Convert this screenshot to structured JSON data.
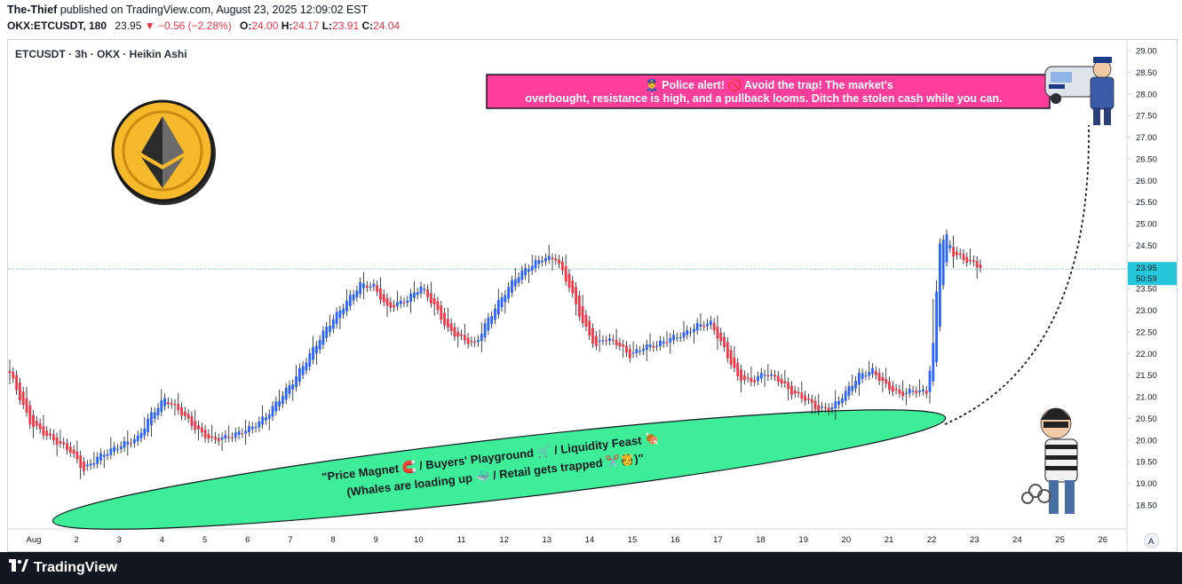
{
  "header": {
    "author": "The-Thief",
    "published": "published on TradingView.com, August 23, 2025 12:09:02 EST",
    "symbol": "OKX:ETCUSDT, 180",
    "last": "23.95",
    "change": "▼ −0.56 (−2.28%)",
    "o_label": "O:",
    "o_value": "24.00",
    "h_label": "H:",
    "h_value": "24.17",
    "l_label": "L:",
    "l_value": "23.91",
    "c_label": "C:",
    "c_value": "24.04"
  },
  "chart_title": "ETCUSDT · 3h · OKX · Heikin Ashi",
  "banner": {
    "line1": "👮‍♂️ Police alert! 🚫 Avoid the trap! The market's",
    "line2": "overbought, resistance is high, and a pullback looms. Ditch the stolen cash while you can."
  },
  "zone": {
    "line1": "\"Price Magnet 🧲 / Buyers' Playground 🛒 / Liquidity Feast 🍖",
    "line2": "(Whales are loading up 🐳 / Retail gets trapped ✂️🫅)\""
  },
  "price_label": {
    "price": "23.95",
    "countdown": "50:59"
  },
  "footer": {
    "brand": "TradingView"
  },
  "colors": {
    "up": "#2962ff",
    "down": "#f23645",
    "zone": "#3ded97",
    "banner": "#ff3d9a",
    "price_line": "#26c6da"
  },
  "chart_data": {
    "type": "candlestick",
    "style": "Heikin Ashi",
    "interval": "3h",
    "ylim": [
      18.5,
      29.0
    ],
    "y_ticks": [
      "29.00",
      "28.50",
      "28.00",
      "27.50",
      "27.00",
      "26.50",
      "26.00",
      "25.50",
      "25.00",
      "24.50",
      "24.00",
      "23.50",
      "23.00",
      "22.50",
      "22.00",
      "21.50",
      "21.00",
      "20.50",
      "20.00",
      "19.50",
      "19.00",
      "18.50"
    ],
    "x_ticks": [
      "Aug",
      "2",
      "3",
      "4",
      "5",
      "6",
      "7",
      "8",
      "9",
      "10",
      "11",
      "12",
      "13",
      "14",
      "15",
      "16",
      "17",
      "18",
      "19",
      "20",
      "21",
      "22",
      "23",
      "24",
      "25",
      "26"
    ],
    "grid": false,
    "current_price": 23.95,
    "anchors": [
      [
        0,
        21.55
      ],
      [
        6,
        20.4
      ],
      [
        12,
        20.05
      ],
      [
        18,
        19.75
      ],
      [
        22,
        19.3
      ],
      [
        26,
        19.6
      ],
      [
        32,
        19.85
      ],
      [
        38,
        20.05
      ],
      [
        42,
        20.6
      ],
      [
        46,
        20.95
      ],
      [
        50,
        20.7
      ],
      [
        56,
        20.2
      ],
      [
        60,
        20.0
      ],
      [
        66,
        20.1
      ],
      [
        72,
        20.3
      ],
      [
        76,
        20.55
      ],
      [
        80,
        20.95
      ],
      [
        84,
        21.35
      ],
      [
        90,
        22.1
      ],
      [
        94,
        22.6
      ],
      [
        98,
        23.0
      ],
      [
        102,
        23.4
      ],
      [
        104,
        23.6
      ],
      [
        108,
        23.55
      ],
      [
        112,
        23.05
      ],
      [
        118,
        23.25
      ],
      [
        122,
        23.55
      ],
      [
        126,
        23.1
      ],
      [
        130,
        22.55
      ],
      [
        134,
        22.35
      ],
      [
        138,
        22.2
      ],
      [
        142,
        22.8
      ],
      [
        146,
        23.3
      ],
      [
        150,
        23.75
      ],
      [
        154,
        24.0
      ],
      [
        158,
        24.2
      ],
      [
        162,
        24.2
      ],
      [
        166,
        23.55
      ],
      [
        170,
        22.7
      ],
      [
        174,
        22.15
      ],
      [
        176,
        22.35
      ],
      [
        180,
        22.25
      ],
      [
        184,
        21.95
      ],
      [
        188,
        22.15
      ],
      [
        192,
        22.2
      ],
      [
        196,
        22.35
      ],
      [
        200,
        22.45
      ],
      [
        204,
        22.65
      ],
      [
        208,
        22.7
      ],
      [
        212,
        22.1
      ],
      [
        216,
        21.45
      ],
      [
        220,
        21.35
      ],
      [
        224,
        21.55
      ],
      [
        228,
        21.4
      ],
      [
        232,
        21.1
      ],
      [
        236,
        20.95
      ],
      [
        240,
        20.7
      ],
      [
        244,
        20.75
      ],
      [
        248,
        21.1
      ],
      [
        252,
        21.5
      ],
      [
        256,
        21.6
      ],
      [
        260,
        21.25
      ],
      [
        264,
        21.05
      ],
      [
        268,
        21.15
      ],
      [
        272,
        21.1
      ],
      [
        274,
        22.2
      ],
      [
        276,
        24.6
      ],
      [
        278,
        24.7
      ],
      [
        280,
        24.3
      ],
      [
        284,
        24.15
      ],
      [
        288,
        24.0
      ]
    ]
  }
}
